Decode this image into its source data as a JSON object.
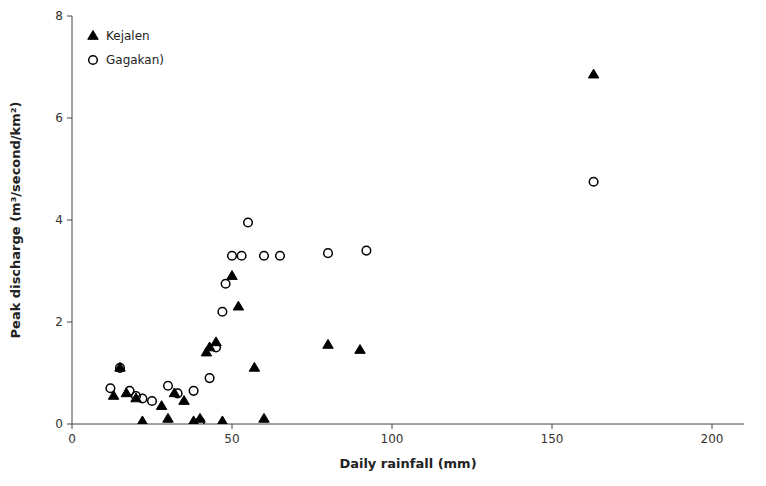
{
  "chart_data": {
    "type": "scatter",
    "xlabel": "Daily rainfall (mm)",
    "ylabel": "Peak discharge (m³/second/km²)",
    "series": [
      {
        "name": "Kejalen",
        "color": "black",
        "marker": "triangle",
        "x": [
          13,
          15,
          17,
          20,
          22,
          28,
          30,
          32,
          35,
          38,
          40,
          42,
          43,
          45,
          47,
          50,
          52,
          57,
          60,
          80,
          90,
          163
        ],
        "values": [
          0.55,
          1.1,
          0.6,
          0.5,
          0.05,
          0.35,
          0.1,
          0.6,
          0.45,
          0.05,
          0.1,
          1.4,
          1.5,
          1.6,
          0.05,
          2.9,
          2.3,
          1.1,
          0.1,
          1.55,
          1.45,
          6.85
        ]
      },
      {
        "name": "Gagakan)",
        "color": "black",
        "marker": "circle",
        "x": [
          12,
          15,
          18,
          20,
          22,
          25,
          30,
          33,
          38,
          40,
          43,
          45,
          47,
          48,
          50,
          53,
          55,
          60,
          65,
          80,
          92,
          163
        ],
        "values": [
          0.7,
          1.1,
          0.65,
          0.55,
          0.5,
          0.45,
          0.75,
          0.6,
          0.65,
          0.05,
          0.9,
          1.5,
          2.2,
          2.75,
          3.3,
          3.3,
          3.95,
          3.3,
          3.3,
          3.35,
          3.4,
          4.75
        ]
      }
    ],
    "xlim": [
      0,
      210
    ],
    "ylim": [
      0,
      8
    ],
    "xticks": [
      0,
      50,
      100,
      150,
      200
    ],
    "yticks": [
      0,
      2,
      4,
      6,
      8
    ],
    "legend": "upper left"
  }
}
